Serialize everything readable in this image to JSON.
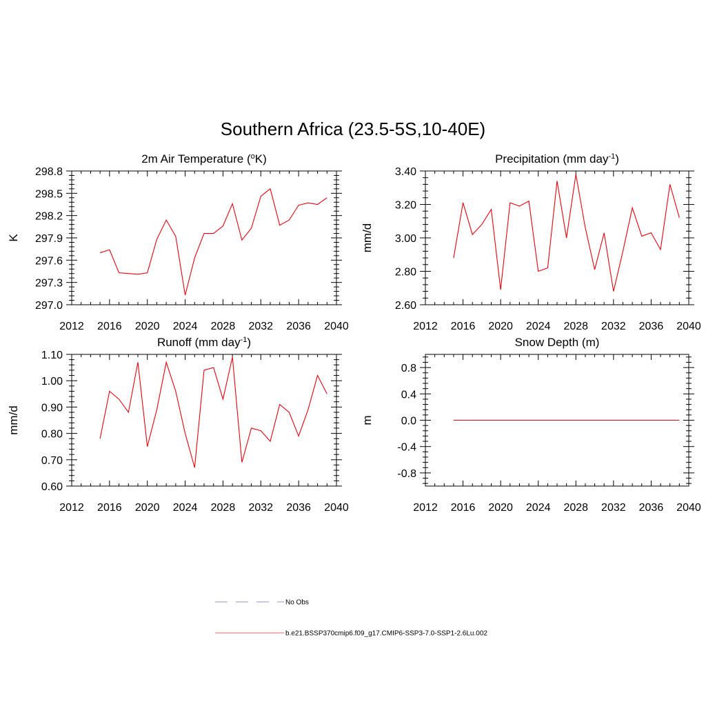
{
  "figure": {
    "title": "Southern Africa (23.5-5S,10-40E)"
  },
  "chart_data": [
    {
      "type": "line",
      "title": "2m Air Temperature (",
      "title_sup": "o",
      "title_after": "K)",
      "ylabel": "K",
      "xlim": [
        2012,
        2040
      ],
      "ylim": [
        297.0,
        298.8
      ],
      "xticks": [
        2012,
        2016,
        2020,
        2024,
        2028,
        2032,
        2036,
        2040
      ],
      "xtick_labels": [
        "2012",
        "2016",
        "2020",
        "2024",
        "2028",
        "2032",
        "2036",
        "2040"
      ],
      "yticks": [
        297.0,
        297.3,
        297.6,
        297.9,
        298.2,
        298.5,
        298.8
      ],
      "ytick_labels": [
        "297.0",
        "297.3",
        "297.6",
        "297.9",
        "298.2",
        "298.5",
        "298.8"
      ],
      "series": [
        {
          "color": "#e8000b",
          "x": [
            2015,
            2016,
            2017,
            2018,
            2019,
            2020,
            2021,
            2022,
            2023,
            2024,
            2025,
            2026,
            2027,
            2028,
            2029,
            2030,
            2031,
            2032,
            2033,
            2034,
            2035,
            2036,
            2037,
            2038,
            2039
          ],
          "values": [
            297.7,
            297.74,
            297.43,
            297.42,
            297.41,
            297.43,
            297.88,
            298.14,
            297.92,
            297.13,
            297.63,
            297.96,
            297.96,
            298.06,
            298.36,
            297.87,
            298.03,
            298.46,
            298.56,
            298.07,
            298.14,
            298.34,
            298.37,
            298.35,
            298.44
          ]
        }
      ]
    },
    {
      "type": "line",
      "title": "Precipitation (mm day",
      "title_sup": "-1",
      "title_after": ")",
      "ylabel": "mm/d",
      "xlim": [
        2012,
        2040
      ],
      "ylim": [
        2.6,
        3.4
      ],
      "xticks": [
        2012,
        2016,
        2020,
        2024,
        2028,
        2032,
        2036,
        2040
      ],
      "xtick_labels": [
        "2012",
        "2016",
        "2020",
        "2024",
        "2028",
        "2032",
        "2036",
        "2040"
      ],
      "yticks": [
        2.6,
        2.8,
        3.0,
        3.2,
        3.4
      ],
      "ytick_labels": [
        "2.60",
        "2.80",
        "3.00",
        "3.20",
        "3.40"
      ],
      "series": [
        {
          "color": "#e8000b",
          "x": [
            2015,
            2016,
            2017,
            2018,
            2019,
            2020,
            2021,
            2022,
            2023,
            2024,
            2025,
            2026,
            2027,
            2028,
            2029,
            2030,
            2031,
            2032,
            2033,
            2034,
            2035,
            2036,
            2037,
            2038,
            2039
          ],
          "values": [
            2.88,
            3.21,
            3.02,
            3.08,
            3.17,
            2.69,
            3.21,
            3.19,
            3.22,
            2.8,
            2.82,
            3.34,
            3.0,
            3.38,
            3.06,
            2.81,
            3.03,
            2.68,
            2.92,
            3.18,
            3.01,
            3.03,
            2.93,
            3.32,
            3.12
          ]
        }
      ]
    },
    {
      "type": "line",
      "title": "Runoff (mm day",
      "title_sup": "-1",
      "title_after": ")",
      "ylabel": "mm/d",
      "xlim": [
        2012,
        2040
      ],
      "ylim": [
        0.6,
        1.1
      ],
      "xticks": [
        2012,
        2016,
        2020,
        2024,
        2028,
        2032,
        2036,
        2040
      ],
      "xtick_labels": [
        "2012",
        "2016",
        "2020",
        "2024",
        "2028",
        "2032",
        "2036",
        "2040"
      ],
      "yticks": [
        0.6,
        0.7,
        0.8,
        0.9,
        1.0,
        1.1
      ],
      "ytick_labels": [
        "0.60",
        "0.70",
        "0.80",
        "0.90",
        "1.00",
        "1.10"
      ],
      "series": [
        {
          "color": "#e8000b",
          "x": [
            2015,
            2016,
            2017,
            2018,
            2019,
            2020,
            2021,
            2022,
            2023,
            2024,
            2025,
            2026,
            2027,
            2028,
            2029,
            2030,
            2031,
            2032,
            2033,
            2034,
            2035,
            2036,
            2037,
            2038,
            2039
          ],
          "values": [
            0.78,
            0.96,
            0.93,
            0.88,
            1.07,
            0.75,
            0.89,
            1.07,
            0.96,
            0.8,
            0.67,
            1.04,
            1.05,
            0.93,
            1.09,
            0.69,
            0.82,
            0.81,
            0.77,
            0.91,
            0.88,
            0.79,
            0.89,
            1.02,
            0.95
          ]
        }
      ]
    },
    {
      "type": "line",
      "title": "Snow Depth (m)",
      "title_sup": "",
      "title_after": "",
      "ylabel": "m",
      "xlim": [
        2012,
        2040
      ],
      "ylim": [
        -1.0,
        1.0
      ],
      "xticks": [
        2012,
        2016,
        2020,
        2024,
        2028,
        2032,
        2036,
        2040
      ],
      "xtick_labels": [
        "2012",
        "2016",
        "2020",
        "2024",
        "2028",
        "2032",
        "2036",
        "2040"
      ],
      "yticks": [
        -0.8,
        -0.4,
        0.0,
        0.4,
        0.8
      ],
      "ytick_labels": [
        "-0.8",
        "-0.4",
        "0.0",
        "0.4",
        "0.8"
      ],
      "series": [
        {
          "color": "#e8000b",
          "x": [
            2015,
            2016,
            2017,
            2018,
            2019,
            2020,
            2021,
            2022,
            2023,
            2024,
            2025,
            2026,
            2027,
            2028,
            2029,
            2030,
            2031,
            2032,
            2033,
            2034,
            2035,
            2036,
            2037,
            2038,
            2039
          ],
          "values": [
            0,
            0,
            0,
            0,
            0,
            0,
            0,
            0,
            0,
            0,
            0,
            0,
            0,
            0,
            0,
            0,
            0,
            0,
            0,
            0,
            0,
            0,
            0,
            0,
            0
          ]
        }
      ]
    }
  ],
  "legend": {
    "placement": "bottom-center",
    "items": [
      {
        "label": "No Obs",
        "color": "#a8a8e0",
        "style": "dashed"
      },
      {
        "label": "b.e21.BSSP370cmip6.f09_g17.CMIP6-SSP3-7.0-SSP1-2.6Lu.002",
        "color": "#ff7f7f",
        "style": "solid"
      }
    ]
  }
}
